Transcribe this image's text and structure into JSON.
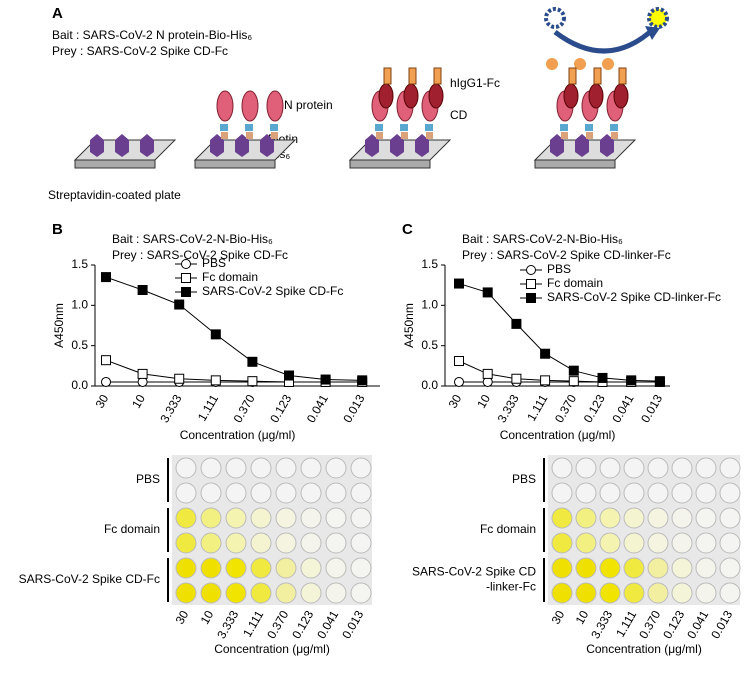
{
  "panel_a": {
    "panel": "A",
    "bait": "Bait : SARS-CoV-2  N protein-Bio-His₆",
    "prey": "Prey : SARS-CoV-2   Spike CD-Fc",
    "plate_label": "Streptavidin-coated  plate",
    "n_protein": "N protein",
    "biotin": "Biotin",
    "his": "His₆",
    "fc": "hIgG1-Fc",
    "cd": "CD"
  },
  "chart_data": [
    {
      "type": "line",
      "panel": "B",
      "title": "Bait : SARS-CoV-2-N-Bio-His₆",
      "subtitle": "Prey : SARS-CoV-2  Spike CD-Fc",
      "ylabel": "A450nm",
      "xlabel": "Concentration (μg/ml)",
      "categories": [
        "30",
        "10",
        "3.333",
        "1.111",
        "0.370",
        "0.123",
        "0.041",
        "0.013"
      ],
      "ylim": [
        0,
        1.5
      ],
      "yticks": [
        {
          "value": 0,
          "label": "0.0"
        },
        {
          "value": 0.5,
          "label": "0.5"
        },
        {
          "value": 1,
          "label": "1.0"
        },
        {
          "value": 1.5,
          "label": "1.5"
        }
      ],
      "series": [
        {
          "name": "PBS",
          "color": "#000000",
          "marker": "open-circle",
          "values": [
            0.05,
            0.05,
            0.05,
            0.05,
            0.05,
            0.05,
            0.05,
            0.05
          ]
        },
        {
          "name": "Fc domain",
          "color": "#000000",
          "marker": "open-square",
          "values": [
            0.32,
            0.15,
            0.09,
            0.07,
            0.06,
            0.05,
            0.05,
            0.05
          ]
        },
        {
          "name": "SARS-CoV-2  Spike CD-Fc",
          "color": "#000000",
          "marker": "filled-square",
          "values": [
            1.35,
            1.19,
            1.01,
            0.64,
            0.3,
            0.13,
            0.08,
            0.07
          ]
        }
      ],
      "plate_rows": [
        "PBS",
        "Fc domain",
        [
          "SARS-CoV-2  Spike CD-Fc"
        ]
      ]
    },
    {
      "type": "line",
      "panel": "C",
      "title": "Bait : SARS-CoV-2-N-Bio-His₆",
      "subtitle": "Prey : SARS-CoV-2  Spike CD-linker-Fc",
      "ylabel": "A450nm",
      "xlabel": "Concentration (μg/ml)",
      "categories": [
        "30",
        "10",
        "3.333",
        "1.111",
        "0.370",
        "0.123",
        "0.041",
        "0.013"
      ],
      "ylim": [
        0,
        1.5
      ],
      "yticks": [
        {
          "value": 0,
          "label": "0.0"
        },
        {
          "value": 0.5,
          "label": "0.5"
        },
        {
          "value": 1,
          "label": "1.0"
        },
        {
          "value": 1.5,
          "label": "1.5"
        }
      ],
      "series": [
        {
          "name": "PBS",
          "color": "#000000",
          "marker": "open-circle",
          "values": [
            0.05,
            0.05,
            0.05,
            0.05,
            0.05,
            0.05,
            0.05,
            0.05
          ]
        },
        {
          "name": "Fc domain",
          "color": "#000000",
          "marker": "open-square",
          "values": [
            0.31,
            0.15,
            0.09,
            0.07,
            0.06,
            0.05,
            0.05,
            0.05
          ]
        },
        {
          "name": "SARS-CoV-2  Spike CD-linker-Fc",
          "color": "#000000",
          "marker": "filled-square",
          "values": [
            1.27,
            1.16,
            0.77,
            0.4,
            0.19,
            0.1,
            0.07,
            0.06
          ]
        }
      ],
      "plate_rows": [
        "PBS",
        "Fc domain",
        [
          "SARS-CoV-2  Spike CD",
          "-linker-Fc"
        ]
      ]
    }
  ]
}
